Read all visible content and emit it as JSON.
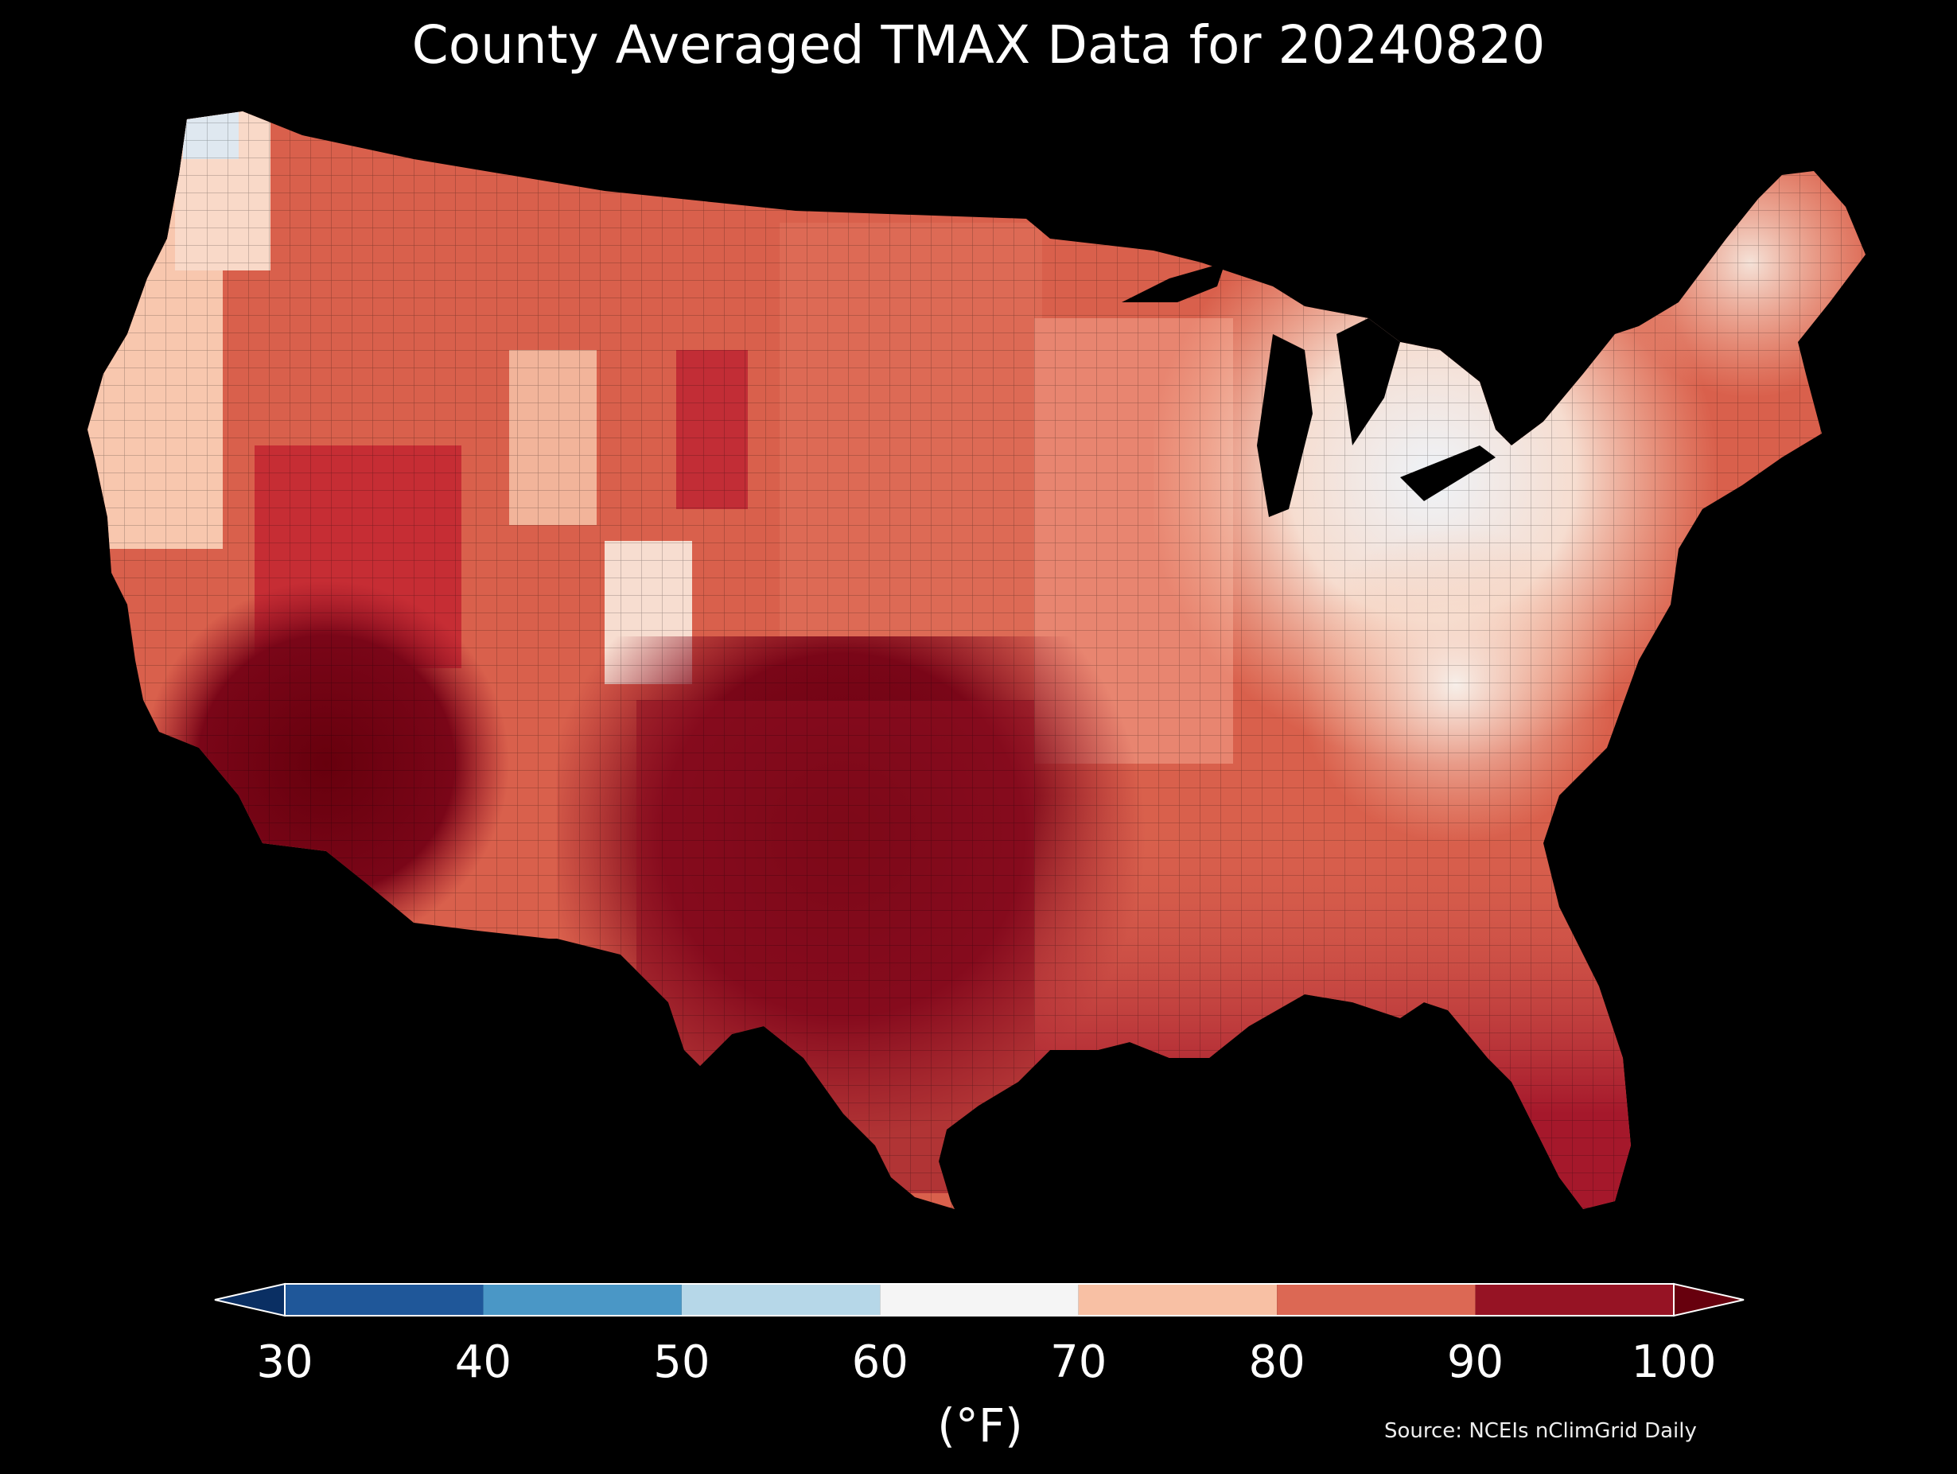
{
  "title": "County Averaged TMAX Data for 20240820",
  "source": "Source: NCEIs nClimGrid Daily",
  "colorbar": {
    "unit": "(°F)",
    "ticks": [
      "30",
      "40",
      "50",
      "60",
      "70",
      "80",
      "90",
      "100"
    ],
    "bins": [
      {
        "range": "<30",
        "color": "#0a2f63"
      },
      {
        "range": "30-40",
        "color": "#1f5799"
      },
      {
        "range": "40-50",
        "color": "#4a97c6"
      },
      {
        "range": "50-60",
        "color": "#b6d7e8"
      },
      {
        "range": "60-70",
        "color": "#f5f5f5"
      },
      {
        "range": "70-80",
        "color": "#f8c0a4"
      },
      {
        "range": "80-90",
        "color": "#dc6854"
      },
      {
        "range": "90-100",
        "color": "#961324"
      },
      {
        "range": ">100",
        "color": "#67000d"
      }
    ]
  },
  "regions": [
    {
      "name": "Pacific Northwest coast",
      "tmax_bin": "60-70"
    },
    {
      "name": "Great Lakes / Ohio Valley / Appalachians",
      "tmax_bin": "60-80"
    },
    {
      "name": "Northern Plains & Rockies",
      "tmax_bin": "80-90"
    },
    {
      "name": "Desert Southwest & Texas",
      "tmax_bin": ">100"
    },
    {
      "name": "Gulf Coast & Southeast",
      "tmax_bin": "90-100"
    }
  ]
}
